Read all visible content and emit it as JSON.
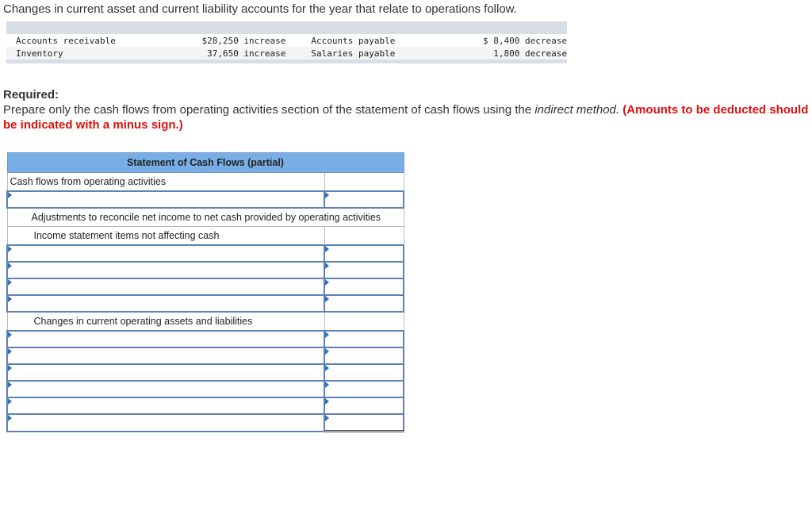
{
  "intro": "Changes in current asset and current liability accounts for the year that relate to operations follow.",
  "given": [
    {
      "a": "Accounts receivable",
      "av": "$28,250 increase",
      "b": "Accounts payable",
      "bv": "$ 8,400 decrease"
    },
    {
      "a": "Inventory",
      "av": "37,650 increase",
      "b": "Salaries payable",
      "bv": "1,800 decrease"
    }
  ],
  "required": {
    "heading": "Required:",
    "text": "Prepare only the cash flows from operating activities section of the statement of cash flows using the ",
    "method": "indirect method.",
    "note": "(Amounts to be deducted should be indicated with a minus sign.)"
  },
  "statement": {
    "title": "Statement of Cash Flows (partial)",
    "cfo": "Cash flows from operating activities",
    "adjust": "Adjustments to reconcile net income to net cash provided by operating activities",
    "income_items": "Income statement items not affecting cash",
    "changes": "Changes in current operating assets and liabilities"
  }
}
